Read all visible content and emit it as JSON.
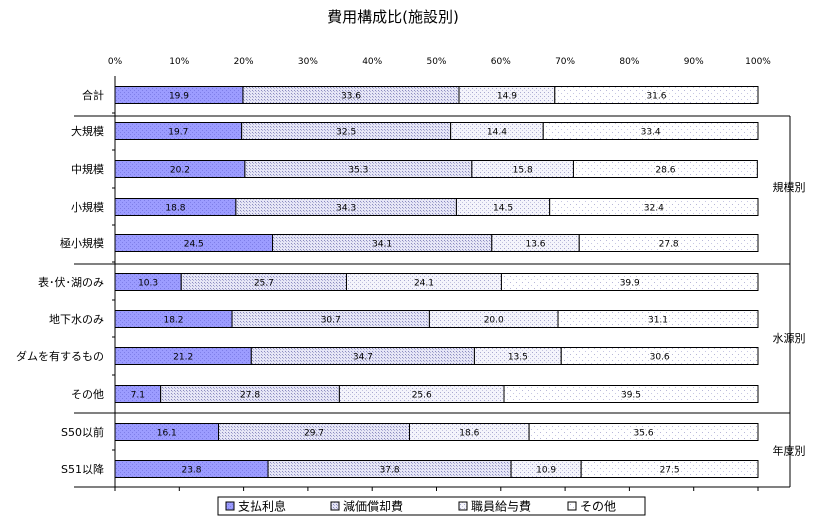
{
  "chart_data": {
    "type": "bar",
    "stacked": "percent",
    "orientation": "horizontal",
    "title": "費用構成比(施設別)",
    "x_ticks": [
      "0%",
      "10%",
      "20%",
      "30%",
      "40%",
      "50%",
      "60%",
      "70%",
      "80%",
      "90%",
      "100%"
    ],
    "xlim": [
      0,
      100
    ],
    "grid": false,
    "legend_position": "bottom",
    "categories": [
      "合計",
      "大規模",
      "中規模",
      "小規模",
      "極小規模",
      "表･伏･湖のみ",
      "地下水のみ",
      "ダムを有するもの",
      "その他",
      "S50以前",
      "S51以降"
    ],
    "series": [
      {
        "name": "支払利息",
        "color": "#9999ff",
        "values": [
          19.9,
          19.7,
          20.2,
          18.8,
          24.5,
          10.3,
          18.2,
          21.2,
          7.1,
          16.1,
          23.8
        ],
        "labels": [
          "19.9",
          "19.7",
          "20.2",
          "18.8",
          "24.5",
          "10.3",
          "18.2",
          "21.2",
          "7.1",
          "16.1",
          "23.8"
        ]
      },
      {
        "name": "減価償却費",
        "color": "#dcdcf2",
        "values": [
          33.6,
          32.5,
          35.3,
          34.3,
          34.1,
          25.7,
          30.7,
          34.7,
          27.8,
          29.7,
          37.8
        ],
        "labels": [
          "33.6",
          "32.5",
          "35.3",
          "34.3",
          "34.1",
          "25.7",
          "30.7",
          "34.7",
          "27.8",
          "29.7",
          "37.8"
        ]
      },
      {
        "name": "職員給与費",
        "color": "#eeeef8",
        "values": [
          14.9,
          14.4,
          15.8,
          14.5,
          13.6,
          24.1,
          20.0,
          13.5,
          25.6,
          18.6,
          10.9
        ],
        "labels": [
          "14.9",
          "14.4",
          "15.8",
          "14.5",
          "13.6",
          "24.1",
          "20.0",
          "13.5",
          "25.6",
          "18.6",
          "10.9"
        ]
      },
      {
        "name": "その他",
        "color": "#f8f8fc",
        "values": [
          31.6,
          33.4,
          28.6,
          32.4,
          27.8,
          39.9,
          31.1,
          30.6,
          39.5,
          35.6,
          27.5
        ],
        "labels": [
          "31.6",
          "33.4",
          "28.6",
          "32.4",
          "27.8",
          "39.9",
          "31.1",
          "30.6",
          "39.5",
          "35.6",
          "27.5"
        ]
      }
    ],
    "groups": [
      {
        "label": "規模別",
        "from": 1,
        "to": 4
      },
      {
        "label": "水源別",
        "from": 5,
        "to": 8
      },
      {
        "label": "年度別",
        "from": 9,
        "to": 10
      }
    ]
  }
}
